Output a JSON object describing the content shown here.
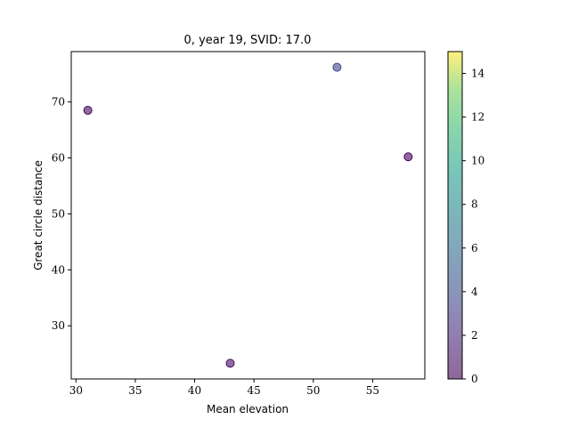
{
  "chart_data": {
    "type": "scatter",
    "title": "0, year 19, SVID: 17.0",
    "xlabel": "Mean elevation",
    "ylabel": "Great circle distance",
    "xlim": [
      29.6,
      59.4
    ],
    "ylim": [
      20.5,
      79.0
    ],
    "xticks": [
      30,
      35,
      40,
      45,
      50,
      55
    ],
    "yticks": [
      30,
      40,
      50,
      60,
      70
    ],
    "colormap": "viridis",
    "alpha": 0.6,
    "colorbar": {
      "min": 0,
      "max": 15,
      "ticks": [
        0,
        2,
        4,
        6,
        8,
        10,
        12,
        14
      ]
    },
    "points": [
      {
        "x": 31.0,
        "y": 68.5,
        "c": 0.3
      },
      {
        "x": 43.0,
        "y": 23.3,
        "c": 0.6
      },
      {
        "x": 52.0,
        "y": 76.2,
        "c": 3.5
      },
      {
        "x": 58.0,
        "y": 60.2,
        "c": 0.2
      }
    ]
  }
}
